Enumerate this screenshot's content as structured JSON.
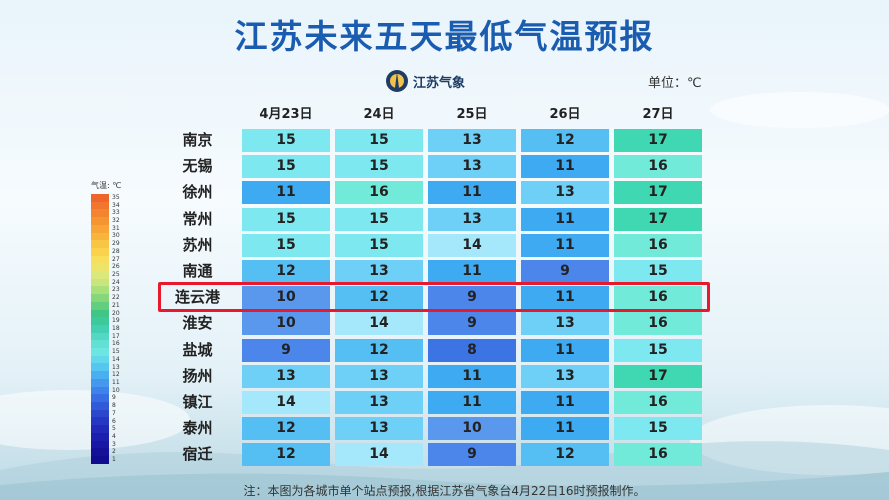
{
  "title": "江苏未来五天最低气温预报",
  "logo": {
    "text": "江苏气象",
    "icon": "cma-logo-icon"
  },
  "unit_label": "单位：℃",
  "legend": {
    "title": "气温: ℃",
    "labels": [
      "35",
      "34",
      "33",
      "32",
      "31",
      "30",
      "29",
      "28",
      "27",
      "26",
      "25",
      "24",
      "23",
      "22",
      "21",
      "20",
      "19",
      "18",
      "17",
      "16",
      "15",
      "14",
      "13",
      "12",
      "11",
      "10",
      "9",
      "8",
      "7",
      "6",
      "5",
      "4",
      "3",
      "2",
      "1"
    ],
    "colors": [
      "#f0652b",
      "#f2762d",
      "#f4852f",
      "#f59532",
      "#f6a536",
      "#f8b53c",
      "#f9c544",
      "#fad24e",
      "#f7de5b",
      "#ede46a",
      "#dde87b",
      "#c8e67d",
      "#a9e07a",
      "#87d77a",
      "#63ce7d",
      "#3fc586",
      "#3cc99c",
      "#43d0b2",
      "#52d8c5",
      "#62e0d4",
      "#6ce6e1",
      "#63d8eb",
      "#55c6ef",
      "#4aaff0",
      "#4499ef",
      "#3e83ea",
      "#376ee3",
      "#315ad9",
      "#2b47ce",
      "#2637c3",
      "#2129b9",
      "#1c1eae",
      "#1817a3",
      "#141099",
      "#100b8f"
    ]
  },
  "days": [
    "4月23日",
    "24日",
    "25日",
    "26日",
    "27日"
  ],
  "cities": [
    {
      "name": "南京",
      "temps": [
        15,
        15,
        13,
        12,
        17
      ]
    },
    {
      "name": "无锡",
      "temps": [
        15,
        15,
        13,
        11,
        16
      ]
    },
    {
      "name": "徐州",
      "temps": [
        11,
        16,
        11,
        13,
        17
      ]
    },
    {
      "name": "常州",
      "temps": [
        15,
        15,
        13,
        11,
        17
      ]
    },
    {
      "name": "苏州",
      "temps": [
        15,
        15,
        14,
        11,
        16
      ]
    },
    {
      "name": "南通",
      "temps": [
        12,
        13,
        11,
        9,
        15
      ]
    },
    {
      "name": "连云港",
      "temps": [
        10,
        12,
        9,
        11,
        16
      ]
    },
    {
      "name": "淮安",
      "temps": [
        10,
        14,
        9,
        13,
        16
      ]
    },
    {
      "name": "盐城",
      "temps": [
        9,
        12,
        8,
        11,
        15
      ]
    },
    {
      "name": "扬州",
      "temps": [
        13,
        13,
        11,
        13,
        17
      ]
    },
    {
      "name": "镇江",
      "temps": [
        14,
        13,
        11,
        11,
        16
      ]
    },
    {
      "name": "泰州",
      "temps": [
        12,
        13,
        10,
        11,
        15
      ]
    },
    {
      "name": "宿迁",
      "temps": [
        12,
        14,
        9,
        12,
        16
      ]
    }
  ],
  "temp_colors": {
    "8": "#3d74e4",
    "9": "#4c86eb",
    "10": "#5a98ee",
    "11": "#3eaaf2",
    "12": "#55bff3",
    "13": "#6fd0f7",
    "14": "#a5e8fb",
    "15": "#7ee8f0",
    "16": "#72ead9",
    "17": "#3fd8b2"
  },
  "highlight_city": "连云港",
  "highlight_color": "#e8192c",
  "note": "注：本图为各城市单个站点预报,根据江苏省气象台4月22日16时预报制作。"
}
